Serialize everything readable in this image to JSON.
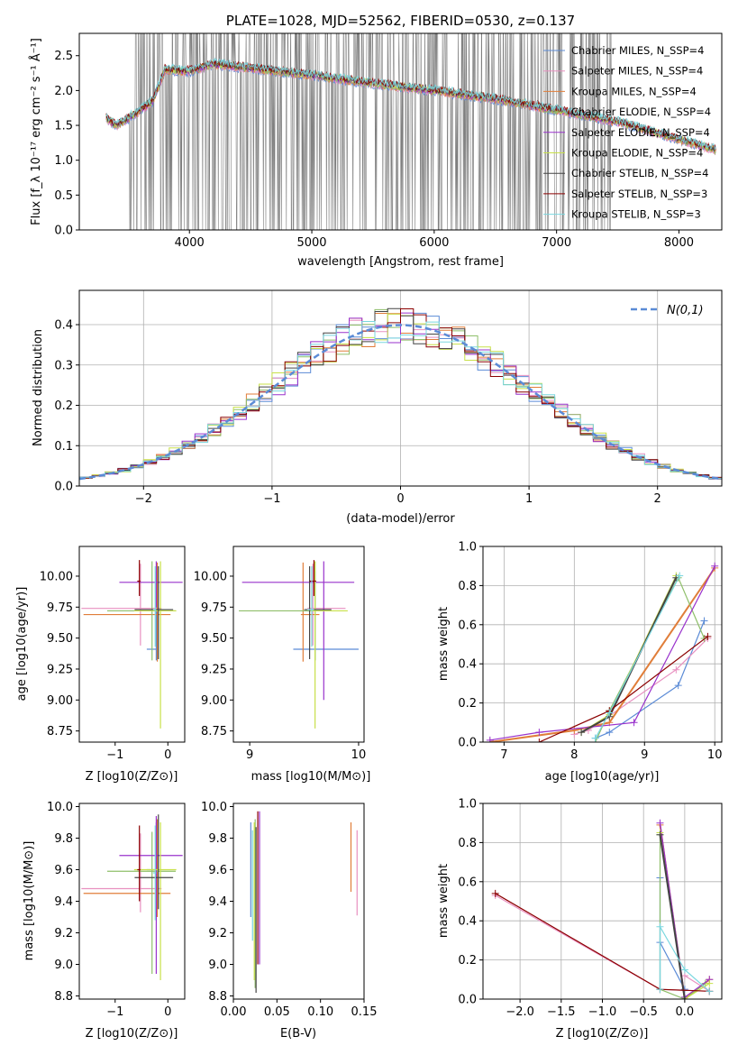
{
  "chart_data": [
    {
      "type": "line",
      "title": "PLATE=1028, MJD=52562, FIBERID=0530, z=0.137",
      "xlabel": "wavelength [Angstrom, rest frame]",
      "ylabel": "Flux [f_λ 10⁻¹⁷ erg cm⁻² s⁻¹ Å⁻¹]",
      "xlim": [
        3100,
        8350
      ],
      "ylim": [
        0,
        2.82
      ],
      "xticks": [
        "4000",
        "5000",
        "6000",
        "7000",
        "8000"
      ],
      "yticks": [
        "0.0",
        "0.5",
        "1.0",
        "1.5",
        "2.0",
        "2.5"
      ],
      "grid": false,
      "legend_position": "top-right",
      "series": [
        {
          "name": "Chabrier MILES, N_SSP=4"
        },
        {
          "name": "Salpeter MILES, N_SSP=4"
        },
        {
          "name": "Kroupa MILES, N_SSP=4"
        },
        {
          "name": "Chabrier ELODIE, N_SSP=4"
        },
        {
          "name": "Salpeter ELODIE, N_SSP=4"
        },
        {
          "name": "Kroupa ELODIE, N_SSP=4"
        },
        {
          "name": "Chabrier STELIB, N_SSP=4"
        },
        {
          "name": "Salpeter STELIB, N_SSP=3"
        },
        {
          "name": "Kroupa STELIB, N_SSP=3"
        }
      ],
      "continuum": {
        "x": [
          3320,
          3400,
          3500,
          3600,
          3700,
          3800,
          4000,
          4200,
          4500,
          5000,
          5500,
          6000,
          6500,
          7000,
          7500,
          8000,
          8400
        ],
        "y": [
          1.6,
          1.5,
          1.6,
          1.72,
          1.85,
          2.3,
          2.28,
          2.38,
          2.32,
          2.22,
          2.1,
          2.0,
          1.88,
          1.72,
          1.55,
          1.3,
          1.1
        ]
      }
    },
    {
      "type": "line",
      "xlabel": "(data-model)/error",
      "ylabel": "Normed distribution",
      "xlim": [
        -2.5,
        2.5
      ],
      "ylim": [
        0,
        0.485
      ],
      "xticks": [
        "−2",
        "−1",
        "0",
        "1",
        "2"
      ],
      "yticks": [
        "0.0",
        "0.1",
        "0.2",
        "0.3",
        "0.4"
      ],
      "grid": true,
      "legend_position": "top-right",
      "reference_curve": {
        "name": "N(0,1)",
        "mean": 0,
        "sigma": 1
      }
    },
    {
      "type": "scatter",
      "xlabel": "Z [log10(Z/Z⊙)]",
      "ylabel": "age [log10(age/yr)]",
      "xlim": [
        -1.68,
        0.32
      ],
      "ylim": [
        8.66,
        10.24
      ],
      "xticks": [
        "−1",
        "0"
      ],
      "yticks": [
        "8.75",
        "9.00",
        "9.25",
        "9.50",
        "9.75",
        "10.00"
      ],
      "points": [
        {
          "x": -0.22,
          "y": 9.41,
          "xerr": [
            0.18,
            0.02
          ],
          "yerr": [
            0.09,
            0.63
          ]
        },
        {
          "x": -0.52,
          "y": 9.74,
          "xerr": [
            1.12,
            0.4
          ],
          "yerr": [
            0.3,
            0.36
          ]
        },
        {
          "x": -0.2,
          "y": 9.69,
          "xerr": [
            1.4,
            0.25
          ],
          "yerr": [
            0.38,
            0.42
          ]
        },
        {
          "x": -0.3,
          "y": 9.72,
          "xerr": [
            0.85,
            0.45
          ],
          "yerr": [
            0.4,
            0.4
          ]
        },
        {
          "x": -0.22,
          "y": 9.95,
          "xerr": [
            0.7,
            0.5
          ],
          "yerr": [
            0.2,
            0.17
          ]
        },
        {
          "x": -0.14,
          "y": 9.72,
          "xerr": [
            0.5,
            0.3
          ],
          "yerr": [
            0.95,
            0.4
          ]
        },
        {
          "x": -0.18,
          "y": 9.73,
          "xerr": [
            0.45,
            0.28
          ],
          "yerr": [
            0.4,
            0.35
          ]
        },
        {
          "x": -0.54,
          "y": 9.96,
          "xerr": [
            0.04,
            0.02
          ],
          "yerr": [
            0.12,
            0.17
          ]
        },
        {
          "x": -0.24,
          "y": 9.73,
          "xerr": [
            0.04,
            0.02
          ],
          "yerr": [
            0.3,
            0.35
          ]
        }
      ]
    },
    {
      "type": "scatter",
      "xlabel": "mass [log10(M/M⊙)]",
      "xlim": [
        8.85,
        10.05
      ],
      "ylim": [
        8.66,
        10.24
      ],
      "xticks": [
        "9",
        "10"
      ],
      "yticks": [
        "8.75",
        "9.00",
        "9.25",
        "9.50",
        "9.75",
        "10.00"
      ],
      "points": [
        {
          "x": 9.6,
          "y": 9.41,
          "xerr": [
            0.2,
            0.4
          ],
          "yerr": [
            0.09,
            0.63
          ]
        },
        {
          "x": 9.58,
          "y": 9.74,
          "xerr": [
            0.05,
            0.3
          ],
          "yerr": [
            0.3,
            0.36
          ]
        },
        {
          "x": 9.49,
          "y": 9.69,
          "xerr": [
            0.02,
            0.15
          ],
          "yerr": [
            0.38,
            0.42
          ]
        },
        {
          "x": 9.6,
          "y": 9.72,
          "xerr": [
            0.7,
            0.15
          ],
          "yerr": [
            0.4,
            0.4
          ]
        },
        {
          "x": 9.68,
          "y": 9.95,
          "xerr": [
            0.75,
            0.28
          ],
          "yerr": [
            0.95,
            0.17
          ]
        },
        {
          "x": 9.6,
          "y": 9.72,
          "xerr": [
            0.05,
            0.3
          ],
          "yerr": [
            0.95,
            0.4
          ]
        },
        {
          "x": 9.55,
          "y": 9.73,
          "xerr": [
            0.05,
            0.2
          ],
          "yerr": [
            0.4,
            0.35
          ]
        },
        {
          "x": 9.59,
          "y": 9.96,
          "xerr": [
            0.04,
            0.02
          ],
          "yerr": [
            0.12,
            0.17
          ]
        },
        {
          "x": 9.57,
          "y": 9.73,
          "xerr": [
            0.04,
            0.02
          ],
          "yerr": [
            0.3,
            0.35
          ]
        }
      ]
    },
    {
      "type": "line",
      "xlabel": "age [log10(age/yr)]",
      "ylabel": "mass weight",
      "xlim": [
        6.7,
        10.1
      ],
      "ylim": [
        0,
        1.0
      ],
      "xticks": [
        "7",
        "8",
        "9",
        "10"
      ],
      "yticks": [
        "0.0",
        "0.2",
        "0.4",
        "0.6",
        "0.8",
        "1.0"
      ],
      "grid": true,
      "series": [
        {
          "x": [
            8.3,
            8.5,
            9.48,
            9.85
          ],
          "y": [
            0.02,
            0.05,
            0.29,
            0.62
          ]
        },
        {
          "x": [
            8.0,
            8.2,
            9.45,
            9.9
          ],
          "y": [
            0.04,
            0.06,
            0.37,
            0.53
          ]
        },
        {
          "x": [
            6.8,
            8.0,
            8.5,
            10.0
          ],
          "y": [
            0.0,
            0.06,
            0.1,
            0.89
          ]
        },
        {
          "x": [
            8.3,
            8.5,
            9.48,
            9.85
          ],
          "y": [
            0.0,
            0.16,
            0.84,
            0.53
          ]
        },
        {
          "x": [
            6.8,
            7.5,
            8.85,
            10.0
          ],
          "y": [
            0.01,
            0.05,
            0.1,
            0.9
          ]
        },
        {
          "x": [
            8.1,
            8.5,
            9.45
          ],
          "y": [
            0.05,
            0.14,
            0.85
          ]
        },
        {
          "x": [
            8.1,
            8.5,
            9.45
          ],
          "y": [
            0.05,
            0.13,
            0.84
          ]
        },
        {
          "x": [
            7.5,
            8.5,
            9.9
          ],
          "y": [
            0.0,
            0.16,
            0.54
          ]
        },
        {
          "x": [
            8.3,
            8.5,
            9.5
          ],
          "y": [
            0.02,
            0.15,
            0.85
          ]
        }
      ]
    },
    {
      "type": "scatter",
      "xlabel": "Z [log10(Z/Z⊙)]",
      "ylabel": "mass [log10(M/M⊙)]",
      "xlim": [
        -1.68,
        0.32
      ],
      "ylim": [
        8.78,
        10.02
      ],
      "xticks": [
        "−1",
        "0"
      ],
      "yticks": [
        "8.8",
        "9.0",
        "9.2",
        "9.4",
        "9.6",
        "9.8",
        "10.0"
      ],
      "points": [
        {
          "x": -0.22,
          "y": 9.6,
          "xerr": [
            0.18,
            0.02
          ],
          "yerr": [
            0.3,
            0.3
          ]
        },
        {
          "x": -0.52,
          "y": 9.48,
          "xerr": [
            1.12,
            0.4
          ],
          "yerr": [
            0.15,
            0.35
          ]
        },
        {
          "x": -0.2,
          "y": 9.45,
          "xerr": [
            1.4,
            0.25
          ],
          "yerr": [
            0.15,
            0.47
          ]
        },
        {
          "x": -0.3,
          "y": 9.59,
          "xerr": [
            0.85,
            0.45
          ],
          "yerr": [
            0.65,
            0.25
          ]
        },
        {
          "x": -0.22,
          "y": 9.69,
          "xerr": [
            0.7,
            0.5
          ],
          "yerr": [
            0.75,
            0.25
          ]
        },
        {
          "x": -0.14,
          "y": 9.6,
          "xerr": [
            0.5,
            0.3
          ],
          "yerr": [
            0.7,
            0.3
          ]
        },
        {
          "x": -0.18,
          "y": 9.55,
          "xerr": [
            0.45,
            0.28
          ],
          "yerr": [
            0.2,
            0.4
          ]
        },
        {
          "x": -0.54,
          "y": 9.6,
          "xerr": [
            0.04,
            0.02
          ],
          "yerr": [
            0.2,
            0.28
          ]
        },
        {
          "x": -0.24,
          "y": 9.58,
          "xerr": [
            0.04,
            0.02
          ],
          "yerr": [
            0.3,
            0.3
          ]
        }
      ]
    },
    {
      "type": "scatter",
      "xlabel": "E(B-V)",
      "xlim": [
        0.0,
        0.15
      ],
      "ylim": [
        8.78,
        10.02
      ],
      "xticks": [
        "0.00",
        "0.05",
        "0.10",
        "0.15"
      ],
      "yticks": [
        "8.8",
        "9.0",
        "9.2",
        "9.4",
        "9.6",
        "9.8",
        "10.0"
      ],
      "points": [
        {
          "x": 0.02,
          "y": 9.6,
          "yerr": [
            0.3,
            0.3
          ]
        },
        {
          "x": 0.142,
          "y": 9.58,
          "yerr": [
            0.27,
            0.27
          ]
        },
        {
          "x": 0.135,
          "y": 9.68,
          "yerr": [
            0.22,
            0.22
          ]
        },
        {
          "x": 0.025,
          "y": 9.5,
          "yerr": [
            0.65,
            0.42
          ]
        },
        {
          "x": 0.03,
          "y": 9.6,
          "yerr": [
            0.6,
            0.37
          ]
        },
        {
          "x": 0.024,
          "y": 9.45,
          "yerr": [
            0.55,
            0.45
          ]
        },
        {
          "x": 0.026,
          "y": 9.42,
          "yerr": [
            0.6,
            0.45
          ]
        },
        {
          "x": 0.028,
          "y": 9.6,
          "yerr": [
            0.6,
            0.37
          ]
        },
        {
          "x": 0.022,
          "y": 9.55,
          "yerr": [
            0.4,
            0.3
          ]
        }
      ]
    },
    {
      "type": "line",
      "xlabel": "Z [log10(Z/Z⊙)]",
      "ylabel": "mass weight",
      "xlim": [
        -2.45,
        0.45
      ],
      "ylim": [
        0,
        1.0
      ],
      "xticks": [
        "−2.0",
        "−1.5",
        "−1.0",
        "−0.5",
        "0.0"
      ],
      "yticks": [
        "0.0",
        "0.2",
        "0.4",
        "0.6",
        "0.8",
        "1.0"
      ],
      "grid": true,
      "series": [
        {
          "x": [
            -0.3,
            -0.3,
            -0.3,
            0.0
          ],
          "y": [
            0.05,
            0.62,
            0.29,
            0.05
          ]
        },
        {
          "x": [
            -2.3,
            -0.3,
            0.3,
            0.0
          ],
          "y": [
            0.53,
            0.05,
            0.04,
            0.12
          ]
        },
        {
          "x": [
            -0.3,
            0.0,
            0.3
          ],
          "y": [
            0.89,
            0.0,
            0.1
          ]
        },
        {
          "x": [
            -0.3,
            -0.3,
            0.0,
            0.25
          ],
          "y": [
            0.84,
            0.05,
            0.0,
            0.08
          ]
        },
        {
          "x": [
            -0.3,
            0.0,
            0.3
          ],
          "y": [
            0.9,
            0.01,
            0.1
          ]
        },
        {
          "x": [
            -0.3,
            0.0,
            0.3
          ],
          "y": [
            0.85,
            0.0,
            0.08
          ]
        },
        {
          "x": [
            -0.3,
            0.0
          ],
          "y": [
            0.84,
            0.0
          ]
        },
        {
          "x": [
            -2.3,
            -0.3,
            0.3
          ],
          "y": [
            0.54,
            0.05,
            0.04
          ]
        },
        {
          "x": [
            -0.3,
            -0.3,
            0.0,
            0.3
          ],
          "y": [
            0.05,
            0.37,
            0.15,
            0.04
          ]
        }
      ]
    }
  ],
  "colors": {
    "series": [
      "#5b8bd6",
      "#e890c0",
      "#e07e3a",
      "#8fbf6a",
      "#9932cc",
      "#c8e04a",
      "#444444",
      "#8b0000",
      "#7ad7df"
    ],
    "data_grey": "#7f7f7f",
    "gaussian": "#5b8bd6",
    "grid": "#b0b0b0"
  },
  "legend_panel2": "N(0,1)"
}
